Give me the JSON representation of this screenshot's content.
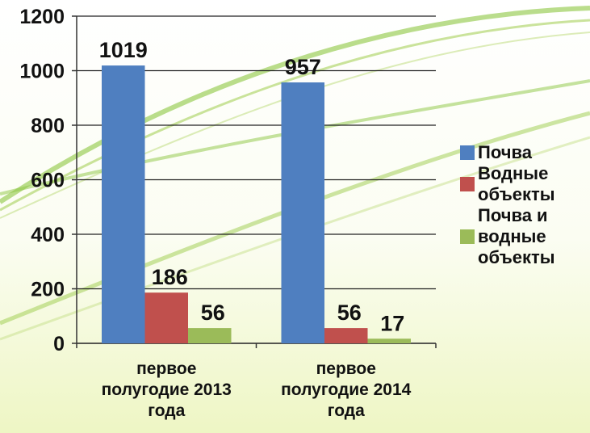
{
  "chart_data": {
    "type": "bar",
    "categories": [
      "первое полугодие 2013 года",
      "первое полугодие 2014 года"
    ],
    "series": [
      {
        "name": "Почва",
        "color": "#4f7fc0",
        "values": [
          1019,
          957
        ]
      },
      {
        "name": "Водные объекты",
        "color": "#c0504d",
        "values": [
          186,
          56
        ]
      },
      {
        "name": "Почва и водные объекты",
        "color": "#9bbb59",
        "values": [
          56,
          17
        ]
      }
    ],
    "ylim": [
      0,
      1200
    ],
    "yticks": [
      0,
      200,
      400,
      600,
      800,
      1000,
      1200
    ],
    "grid": true,
    "legend": "right"
  }
}
